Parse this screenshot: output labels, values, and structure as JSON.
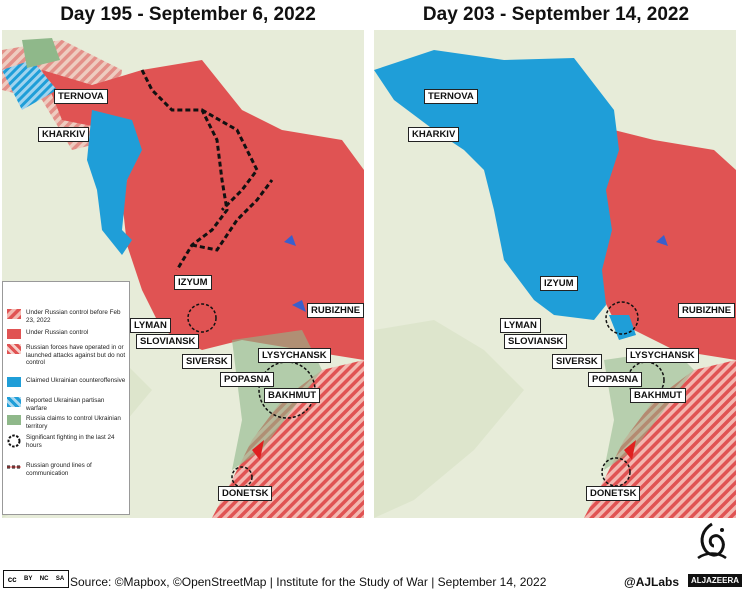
{
  "maps": [
    {
      "title": "Day 195 - September 6, 2022",
      "labels": {
        "ternova": "TERNOVA",
        "kharkiv": "KHARKIV",
        "izyum": "IZYUM",
        "lyman": "LYMAN",
        "sloviansk": "SLOVIANSK",
        "rubizhne": "RUBIZHNE",
        "siversk": "SIVERSK",
        "lysychansk": "LYSYCHANSK",
        "popasna": "POPASNA",
        "bakhmut": "BAKHMUT",
        "donetsk": "DONETSK"
      }
    },
    {
      "title": "Day 203 - September 14, 2022",
      "labels": {
        "ternova": "TERNOVA",
        "kharkiv": "KHARKIV",
        "izyum": "IZYUM",
        "lyman": "LYMAN",
        "sloviansk": "SLOVIANSK",
        "rubizhne": "RUBIZHNE",
        "siversk": "SIVERSK",
        "lysychansk": "LYSYCHANSK",
        "popasna": "POPASNA",
        "bakhmut": "BAKHMUT",
        "donetsk": "DONETSK"
      }
    }
  ],
  "legend": [
    {
      "label": "Under Russian control before Feb 23, 2022",
      "swatch": "hatched-red"
    },
    {
      "label": "Under Russian control",
      "swatch": "red"
    },
    {
      "label": "Russian forces have operated in or launched attacks against but do not control",
      "swatch": "hatched-red-light"
    },
    {
      "label": "Claimed Ukrainian counteroffensive",
      "swatch": "blue"
    },
    {
      "label": "Reported Ukrainian partisan warfare",
      "swatch": "hatched-blue"
    },
    {
      "label": "Russia claims to control Ukrainian territory",
      "swatch": "green"
    },
    {
      "label": "Significant fighting in the last 24 hours",
      "swatch": "dashed-circle"
    },
    {
      "label": "Russian ground lines of communication",
      "swatch": "dashed-line"
    }
  ],
  "colors": {
    "russian": "#e05353",
    "ukrainian": "#1f9ed8",
    "claims": "#8fb88a",
    "land": "#e7ecd9"
  },
  "footer": {
    "cc": [
      "BY",
      "NC",
      "SA"
    ],
    "source": "Source: ©Mapbox, ©OpenStreetMap  |  Institute for the Study of War | September 14, 2022",
    "handle": "@AJLabs",
    "brand": "ALJAZEERA"
  }
}
